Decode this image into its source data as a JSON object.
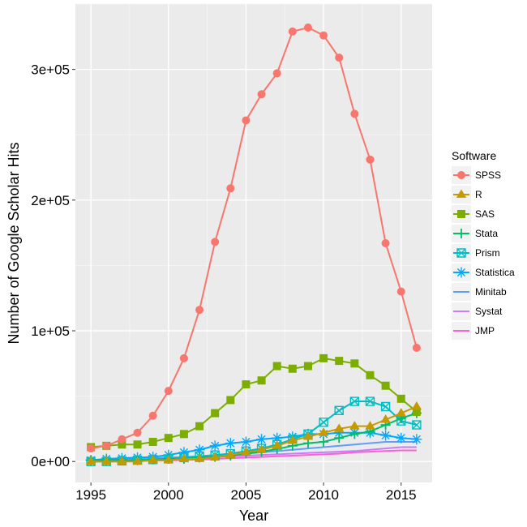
{
  "chart_data": {
    "type": "line",
    "title": "",
    "xlabel": "Year",
    "ylabel": "Number of Google Scholar Hits",
    "xlim": [
      1994,
      2017
    ],
    "ylim": [
      -16000,
      350000
    ],
    "x_ticks": [
      1995,
      2000,
      2005,
      2010,
      2015
    ],
    "x_tick_labels": [
      "1995",
      "2000",
      "2005",
      "2010",
      "2015"
    ],
    "y_ticks": [
      0,
      100000,
      200000,
      300000
    ],
    "y_tick_labels": [
      "0e+00",
      "1e+05",
      "2e+05",
      "3e+05"
    ],
    "grid": true,
    "legend": {
      "title": "Software",
      "position": "right"
    },
    "x": [
      1995,
      1996,
      1997,
      1998,
      1999,
      2000,
      2001,
      2002,
      2003,
      2004,
      2005,
      2006,
      2007,
      2008,
      2009,
      2010,
      2011,
      2012,
      2013,
      2014,
      2015,
      2016
    ],
    "series": [
      {
        "name": "SPSS",
        "color": "#f8766d",
        "marker": "circle",
        "values": [
          10000,
          12000,
          17000,
          22000,
          35000,
          54000,
          79000,
          116000,
          168000,
          209000,
          261000,
          281000,
          297000,
          329000,
          332000,
          326000,
          309000,
          266000,
          231000,
          167000,
          130000,
          87000
        ]
      },
      {
        "name": "R",
        "color": "#c49a00",
        "marker": "triangle",
        "values": [
          0,
          0,
          0,
          0,
          1000,
          1000,
          2000,
          2000,
          3000,
          5000,
          7000,
          9000,
          12000,
          16000,
          19000,
          22000,
          25000,
          27000,
          27000,
          32000,
          37000,
          42000
        ]
      },
      {
        "name": "SAS",
        "color": "#7cae00",
        "marker": "square",
        "values": [
          11000,
          12000,
          13000,
          13000,
          15000,
          18000,
          21000,
          27000,
          37000,
          47000,
          59000,
          62000,
          73000,
          71000,
          73000,
          79000,
          77000,
          75000,
          66000,
          58000,
          48000,
          38000
        ]
      },
      {
        "name": "Stata",
        "color": "#00be67",
        "marker": "plus",
        "values": [
          1000,
          1000,
          1000,
          1000,
          1500,
          2000,
          2000,
          3000,
          3500,
          4500,
          6000,
          7500,
          9500,
          12000,
          14000,
          15000,
          18000,
          21000,
          23000,
          28000,
          33000,
          37000
        ]
      },
      {
        "name": "Prism",
        "color": "#00bfc4",
        "marker": "boxx",
        "values": [
          0,
          0,
          500,
          1000,
          1500,
          2000,
          3000,
          4000,
          5000,
          6000,
          8000,
          10000,
          13000,
          17000,
          21000,
          30000,
          39000,
          46000,
          46000,
          42000,
          31000,
          28000
        ]
      },
      {
        "name": "Statistica",
        "color": "#00a9ff",
        "marker": "asterisk",
        "values": [
          1000,
          2000,
          2500,
          3000,
          3500,
          5000,
          7000,
          9000,
          12000,
          14000,
          15000,
          17000,
          18000,
          19000,
          21000,
          21000,
          22000,
          22000,
          22000,
          20000,
          18000,
          17000
        ]
      },
      {
        "name": "Minitab",
        "color": "#619cff",
        "marker": "none",
        "values": [
          1000,
          1500,
          2000,
          2000,
          2500,
          3000,
          3500,
          4000,
          4500,
          5000,
          6000,
          7000,
          8000,
          9000,
          10000,
          11000,
          12000,
          13000,
          14000,
          15000,
          15000,
          15000
        ]
      },
      {
        "name": "Systat",
        "color": "#c77cff",
        "marker": "none",
        "values": [
          1000,
          1000,
          1500,
          1500,
          2000,
          2000,
          2500,
          3000,
          3500,
          4000,
          4500,
          5000,
          5500,
          6000,
          6500,
          7000,
          7500,
          8000,
          9000,
          10000,
          11000,
          11000
        ]
      },
      {
        "name": "JMP",
        "color": "#ff61cc",
        "marker": "none",
        "values": [
          0,
          0,
          0,
          500,
          500,
          1000,
          1000,
          1500,
          2000,
          2500,
          3000,
          3500,
          4000,
          4500,
          5000,
          5500,
          6000,
          7000,
          7500,
          8000,
          8500,
          8500
        ]
      }
    ]
  }
}
